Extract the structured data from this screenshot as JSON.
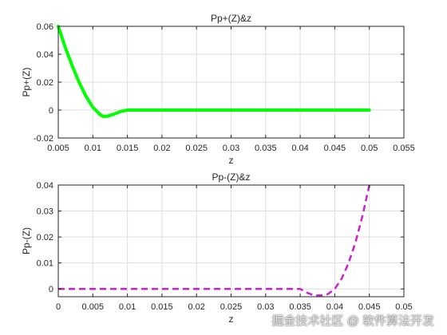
{
  "chart_data": [
    {
      "type": "line",
      "title": "Pp+(Z)&z",
      "xlabel": "z",
      "ylabel": "Pp+(Z)",
      "xlim": [
        0.005,
        0.055
      ],
      "ylim": [
        -0.02,
        0.06
      ],
      "xticks": [
        "0.005",
        "0.01",
        "0.015",
        "0.02",
        "0.025",
        "0.03",
        "0.035",
        "0.04",
        "0.045",
        "0.05",
        "0.055"
      ],
      "yticks": [
        "-0.02",
        "0",
        "0.02",
        "0.04",
        "0.06"
      ],
      "grid": true,
      "series": [
        {
          "style": "solid",
          "color": "#00ff00",
          "x": [
            0.005,
            0.006,
            0.007,
            0.008,
            0.009,
            0.01,
            0.011,
            0.0115,
            0.012,
            0.013,
            0.014,
            0.015,
            0.016,
            0.02,
            0.03,
            0.04,
            0.05
          ],
          "y": [
            0.06,
            0.045,
            0.032,
            0.02,
            0.01,
            0.002,
            -0.003,
            -0.0045,
            -0.0045,
            -0.003,
            -0.001,
            0.0,
            0.0,
            0.0,
            0.0,
            0.0,
            0.0
          ]
        }
      ]
    },
    {
      "type": "line",
      "title": "Pp-(Z)&z",
      "xlabel": "z",
      "ylabel": "Pp-(Z)",
      "xlim": [
        0,
        0.05
      ],
      "ylim": [
        -0.003,
        0.04
      ],
      "xticks": [
        "0",
        "0.005",
        "0.01",
        "0.015",
        "0.02",
        "0.025",
        "0.03",
        "0.035",
        "0.04",
        "0.045",
        "0.05"
      ],
      "yticks": [
        "0",
        "0.01",
        "0.02",
        "0.03",
        "0.04"
      ],
      "grid": true,
      "series": [
        {
          "style": "dashed",
          "color": "#cc22cc",
          "x": [
            0.0,
            0.005,
            0.01,
            0.015,
            0.02,
            0.025,
            0.03,
            0.035,
            0.036,
            0.037,
            0.038,
            0.039,
            0.04,
            0.041,
            0.042,
            0.043,
            0.044,
            0.045
          ],
          "y": [
            0.0,
            0.0,
            0.0,
            0.0,
            0.0,
            0.0,
            0.0,
            0.0,
            -0.0015,
            -0.0025,
            -0.0025,
            -0.002,
            0.0,
            0.004,
            0.01,
            0.018,
            0.028,
            0.04
          ]
        }
      ]
    }
  ],
  "watermark": "掘金技术社区 @ 软件算法开发"
}
